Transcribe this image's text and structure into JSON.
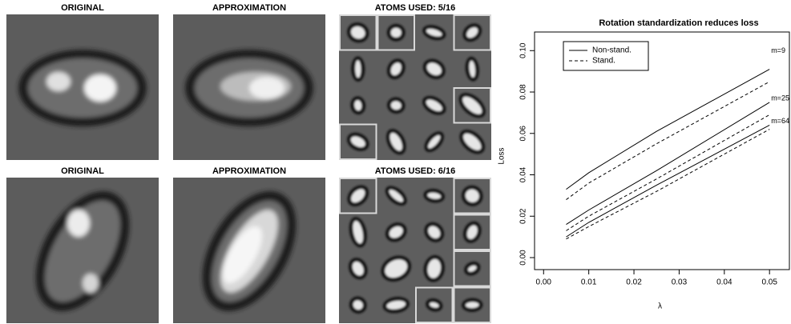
{
  "panels": [
    {
      "original": "ORIGINAL",
      "approximation": "APPROXIMATION",
      "atoms": "ATOMS USED: 5/16"
    },
    {
      "original": "ORIGINAL",
      "approximation": "APPROXIMATION",
      "atoms": "ATOMS USED: 6/16"
    }
  ],
  "chart_data": {
    "type": "line",
    "title": "Rotation standardization reduces loss",
    "x_label": "λ",
    "y_label": "Loss",
    "x": [
      0.005,
      0.01,
      0.025,
      0.05
    ],
    "curve_labels": [
      "m=9",
      "m=25",
      "m=64"
    ],
    "series": [
      {
        "name": "Non-stand.",
        "color": "#000000",
        "dash": "solid",
        "values": [
          [
            0.033,
            0.041,
            0.061,
            0.091
          ],
          [
            0.016,
            0.023,
            0.042,
            0.075
          ],
          [
            0.01,
            0.017,
            0.035,
            0.064
          ]
        ]
      },
      {
        "name": "Stand.",
        "color": "#000000",
        "dash": "dashed",
        "values": [
          [
            0.028,
            0.036,
            0.055,
            0.085
          ],
          [
            0.013,
            0.02,
            0.038,
            0.069
          ],
          [
            0.009,
            0.015,
            0.032,
            0.062
          ]
        ]
      }
    ],
    "xlim": [
      -0.002,
      0.0544
    ],
    "ylim": [
      -0.0058,
      0.109
    ],
    "xticks": [
      {
        "value": 0,
        "label": "0.00"
      },
      {
        "value": 0.01,
        "label": "0.01"
      },
      {
        "value": 0.02,
        "label": "0.02"
      },
      {
        "value": 0.03,
        "label": "0.03"
      },
      {
        "value": 0.04,
        "label": "0.04"
      },
      {
        "value": 0.05,
        "label": "0.05"
      }
    ],
    "yticks": [
      {
        "value": 0,
        "label": "0.00"
      },
      {
        "value": 0.02,
        "label": "0.02"
      },
      {
        "value": 0.04,
        "label": "0.04"
      },
      {
        "value": 0.06,
        "label": "0.06"
      },
      {
        "value": 0.08,
        "label": "0.08"
      },
      {
        "value": 0.1,
        "label": "0.10"
      }
    ],
    "legend": "top-left"
  }
}
